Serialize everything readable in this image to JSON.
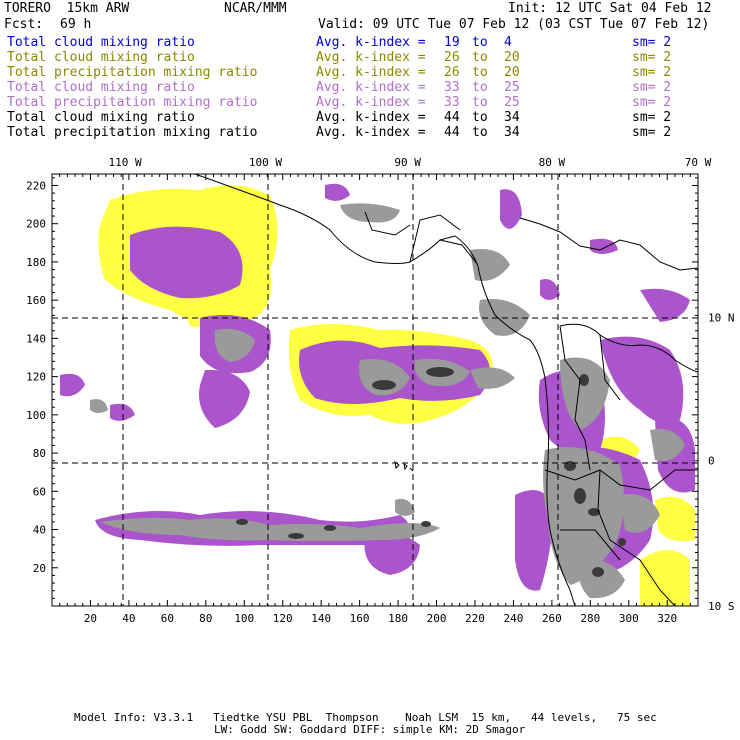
{
  "header": {
    "model": "TORERO  15km ARW",
    "center": "NCAR/MMM",
    "init": "Init: 12 UTC Sat 04 Feb 12",
    "fcst_label": "Fcst:",
    "fcst_value": "69 h",
    "valid": "Valid: 09 UTC Tue 07 Feb 12 (03 CST Tue 07 Feb 12)"
  },
  "legend_rows": [
    {
      "field": "Total cloud mixing ratio",
      "kindex": "Avg. k-index = ",
      "from": "19",
      "to_word": "to",
      "to": "4",
      "sm": "sm= 2",
      "color": "#0000cc"
    },
    {
      "field": "Total cloud mixing ratio",
      "kindex": "Avg. k-index = ",
      "from": "26",
      "to_word": "to",
      "to": "20",
      "sm": "sm= 2",
      "color": "#8a8a00"
    },
    {
      "field": "Total precipitation mixing ratio",
      "kindex": "Avg. k-index = ",
      "from": "26",
      "to_word": "to",
      "to": "20",
      "sm": "sm= 2",
      "color": "#8a8a00"
    },
    {
      "field": "Total cloud mixing ratio",
      "kindex": "Avg. k-index = ",
      "from": "33",
      "to_word": "to",
      "to": "25",
      "sm": "sm= 2",
      "color": "#b070c8"
    },
    {
      "field": "Total precipitation mixing ratio",
      "kindex": "Avg. k-index = ",
      "from": "33",
      "to_word": "to",
      "to": "25",
      "sm": "sm= 2",
      "color": "#b070c8"
    },
    {
      "field": "Total cloud mixing ratio",
      "kindex": "Avg. k-index = ",
      "from": "44",
      "to_word": "to",
      "to": "34",
      "sm": "sm= 2",
      "color": "#000000"
    },
    {
      "field": "Total precipitation mixing ratio",
      "kindex": "Avg. k-index = ",
      "from": "44",
      "to_word": "to",
      "to": "34",
      "sm": "sm= 2",
      "color": "#000000"
    }
  ],
  "map": {
    "x_ticks": [
      20,
      40,
      60,
      80,
      100,
      120,
      140,
      160,
      180,
      200,
      220,
      240,
      260,
      280,
      300,
      320
    ],
    "y_ticks": [
      20,
      40,
      60,
      80,
      100,
      120,
      140,
      160,
      180,
      200,
      220
    ],
    "x_range": [
      0,
      336
    ],
    "y_range": [
      0,
      226
    ],
    "lon_labels": [
      {
        "text": "110 W",
        "grid_x": 38
      },
      {
        "text": "100 W",
        "grid_x": 111
      },
      {
        "text": "90 W",
        "grid_x": 185
      },
      {
        "text": "80 W",
        "grid_x": 260
      },
      {
        "text": "70 W",
        "grid_x": 336
      }
    ],
    "lat_labels": [
      {
        "text": "10 N",
        "grid_y": 151
      },
      {
        "text": "0",
        "grid_y": 76
      },
      {
        "text": "10 S",
        "grid_y": 0
      }
    ],
    "colors": {
      "yellow": "#ffff44",
      "purple": "#aa55cc",
      "gray": "#9a9a9a",
      "dark": "#3a3a3a",
      "coast": "#000000"
    }
  },
  "footer": {
    "line1": "Model Info: V3.3.1   Tiedtke YSU PBL  Thompson    Noah LSM  15 km,   44 levels,   75 sec",
    "line2": "LW: Godd SW: Goddard DIFF: simple KM: 2D Smagor"
  }
}
